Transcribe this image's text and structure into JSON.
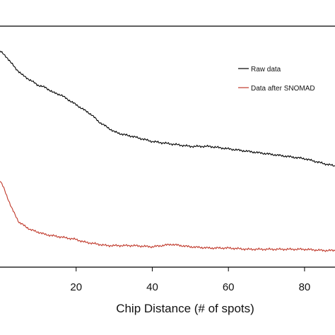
{
  "chart_data": {
    "type": "line",
    "xlabel": "Chip Distance (# of spots)",
    "ylabel": "",
    "title": "",
    "xlim": [
      0,
      88
    ],
    "x_ticks": [
      20,
      40,
      60,
      80
    ],
    "grid": false,
    "legend_position": "top-right",
    "series": [
      {
        "name": "Raw data",
        "color": "#000000",
        "x": [
          0,
          2,
          4,
          6,
          8,
          10,
          12,
          14,
          16,
          18,
          20,
          22,
          24,
          26,
          28,
          30,
          32,
          35,
          40,
          45,
          50,
          55,
          60,
          65,
          70,
          75,
          80,
          85,
          88
        ],
        "y": [
          1.0,
          0.97,
          0.93,
          0.9,
          0.88,
          0.86,
          0.85,
          0.83,
          0.82,
          0.8,
          0.78,
          0.76,
          0.74,
          0.71,
          0.69,
          0.67,
          0.66,
          0.65,
          0.63,
          0.62,
          0.61,
          0.61,
          0.6,
          0.59,
          0.58,
          0.57,
          0.56,
          0.54,
          0.53
        ]
      },
      {
        "name": "Data after SNOMAD",
        "color": "#c0392b",
        "x": [
          0,
          1,
          2,
          3,
          4,
          5,
          6,
          8,
          10,
          12,
          14,
          16,
          18,
          20,
          22,
          24,
          26,
          28,
          30,
          35,
          40,
          45,
          50,
          55,
          60,
          65,
          70,
          75,
          80,
          85,
          88
        ],
        "y": [
          0.47,
          0.44,
          0.4,
          0.36,
          0.33,
          0.3,
          0.29,
          0.27,
          0.26,
          0.25,
          0.245,
          0.24,
          0.235,
          0.23,
          0.22,
          0.215,
          0.21,
          0.205,
          0.205,
          0.205,
          0.2,
          0.21,
          0.2,
          0.195,
          0.195,
          0.19,
          0.19,
          0.19,
          0.19,
          0.185,
          0.185
        ]
      }
    ]
  }
}
